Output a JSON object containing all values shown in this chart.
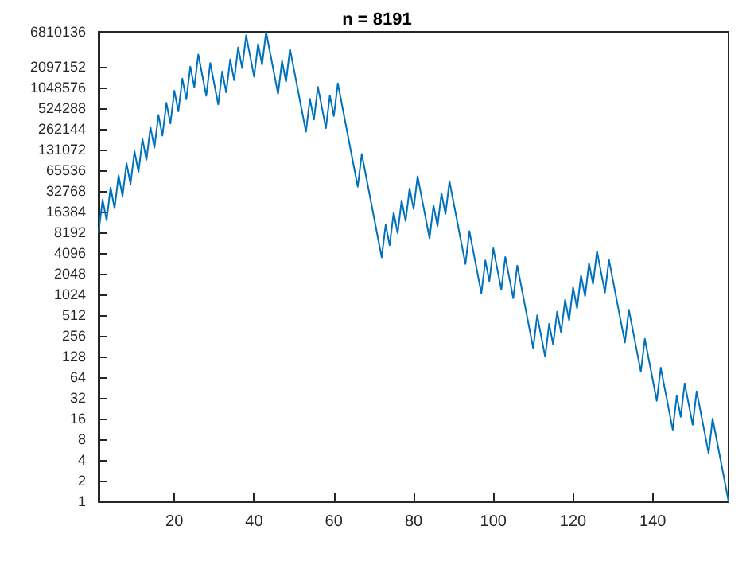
{
  "chart_data": {
    "type": "line",
    "title": "n = 8191",
    "x": [
      1,
      2,
      3,
      4,
      5,
      6,
      7,
      8,
      9,
      10,
      11,
      12,
      13,
      14,
      15,
      16,
      17,
      18,
      19,
      20,
      21,
      22,
      23,
      24,
      25,
      26,
      27,
      28,
      29,
      30,
      31,
      32,
      33,
      34,
      35,
      36,
      37,
      38,
      39,
      40,
      41,
      42,
      43,
      44,
      45,
      46,
      47,
      48,
      49,
      50,
      51,
      52,
      53,
      54,
      55,
      56,
      57,
      58,
      59,
      60,
      61,
      62,
      63,
      64,
      65,
      66,
      67,
      68,
      69,
      70,
      71,
      72,
      73,
      74,
      75,
      76,
      77,
      78,
      79,
      80,
      81,
      82,
      83,
      84,
      85,
      86,
      87,
      88,
      89,
      90,
      91,
      92,
      93,
      94,
      95,
      96,
      97,
      98,
      99,
      100,
      101,
      102,
      103,
      104,
      105,
      106,
      107,
      108,
      109,
      110,
      111,
      112,
      113,
      114,
      115,
      116,
      117,
      118,
      119,
      120,
      121,
      122,
      123,
      124,
      125,
      126,
      127,
      128,
      129,
      130,
      131,
      132,
      133,
      134,
      135,
      136,
      137,
      138,
      139,
      140,
      141,
      142,
      143,
      144,
      145,
      146,
      147,
      148,
      149,
      150,
      151,
      152,
      153,
      154,
      155,
      156,
      157,
      158,
      159
    ],
    "series": [
      {
        "color": "#0072bd",
        "values": [
          8191,
          24574,
          12287,
          36862,
          18431,
          55294,
          27647,
          82942,
          41471,
          124414,
          62207,
          186622,
          93311,
          279934,
          139967,
          419902,
          209951,
          629854,
          314927,
          944782,
          472391,
          1417174,
          708587,
          2125762,
          1062881,
          3188644,
          1594322,
          797161,
          2391484,
          1195742,
          597871,
          1793614,
          896807,
          2690422,
          1345211,
          4035634,
          2017817,
          6053452,
          3026726,
          1513363,
          4540090,
          2270045,
          6810136,
          3405068,
          1702534,
          851267,
          2553802,
          1276901,
          3830704,
          1915352,
          957676,
          478838,
          239419,
          718258,
          359129,
          1077388,
          538694,
          269347,
          808042,
          404021,
          1212064,
          606032,
          303016,
          151508,
          75754,
          37877,
          113632,
          56816,
          28408,
          14204,
          7102,
          3551,
          10654,
          5327,
          15982,
          7991,
          23974,
          11987,
          35962,
          17981,
          53944,
          26972,
          13486,
          6743,
          20230,
          10115,
          30346,
          15173,
          45520,
          22760,
          11380,
          5690,
          2845,
          8536,
          4268,
          2134,
          1067,
          3202,
          1601,
          4804,
          2402,
          1201,
          3604,
          1802,
          901,
          2704,
          1352,
          676,
          338,
          169,
          508,
          254,
          127,
          382,
          191,
          574,
          287,
          862,
          431,
          1294,
          647,
          1942,
          971,
          2914,
          1457,
          4372,
          2186,
          1093,
          3280,
          1640,
          820,
          410,
          205,
          616,
          308,
          154,
          77,
          232,
          116,
          58,
          29,
          88,
          44,
          22,
          11,
          34,
          17,
          52,
          26,
          13,
          40,
          20,
          10,
          5,
          16,
          8,
          4,
          2,
          1
        ]
      }
    ],
    "xlim": [
      1,
      159
    ],
    "xticks": [
      20,
      40,
      60,
      80,
      100,
      120,
      140
    ],
    "ylim": [
      1,
      6810136
    ],
    "yticks": [
      1,
      2,
      4,
      8,
      16,
      32,
      64,
      128,
      256,
      512,
      1024,
      2048,
      4096,
      8192,
      16384,
      32768,
      65536,
      131072,
      262144,
      524288,
      1048576,
      2097152,
      6810136
    ],
    "log": "y",
    "grid": false,
    "marker": "none",
    "line_style": "solid"
  }
}
